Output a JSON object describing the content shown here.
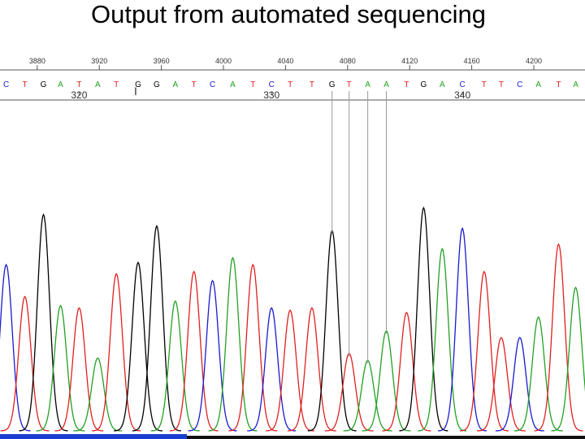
{
  "chart_data": {
    "type": "chromatogram",
    "title": "Output from automated sequencing",
    "xlim": [
      3856,
      4233
    ],
    "xticks": [
      3880,
      3920,
      3960,
      4000,
      4040,
      4080,
      4120,
      4160,
      4200
    ],
    "ylim": [
      0,
      100
    ],
    "base_colors": {
      "A": "#22a022",
      "C": "#1a1ad0",
      "G": "#000000",
      "T": "#e02020"
    },
    "bases": [
      "C",
      "T",
      "G",
      "A",
      "T",
      "A",
      "T",
      "G",
      "G",
      "A",
      "T",
      "C",
      "A",
      "T",
      "C",
      "T",
      "T",
      "G",
      "T",
      "A",
      "A",
      "T",
      "G",
      "A",
      "C",
      "T",
      "T",
      "C",
      "A",
      "T",
      "A"
    ],
    "x": [
      3860,
      3872,
      3884,
      3895,
      3907,
      3919,
      3931,
      3945,
      3957,
      3969,
      3981,
      3993,
      4006,
      4019,
      4031,
      4043,
      4057,
      4070,
      4081,
      4093,
      4105,
      4118,
      4129,
      4141,
      4154,
      4168,
      4179,
      4191,
      4203,
      4216,
      4227
    ],
    "values": [
      73,
      59,
      95,
      55,
      54,
      32,
      69,
      74,
      90,
      57,
      70,
      66,
      76,
      73,
      54,
      53,
      54,
      88,
      34,
      31,
      44,
      52,
      98,
      80,
      89,
      70,
      41,
      41,
      50,
      82,
      63
    ],
    "base_numbers": [
      320,
      330,
      340
    ]
  }
}
